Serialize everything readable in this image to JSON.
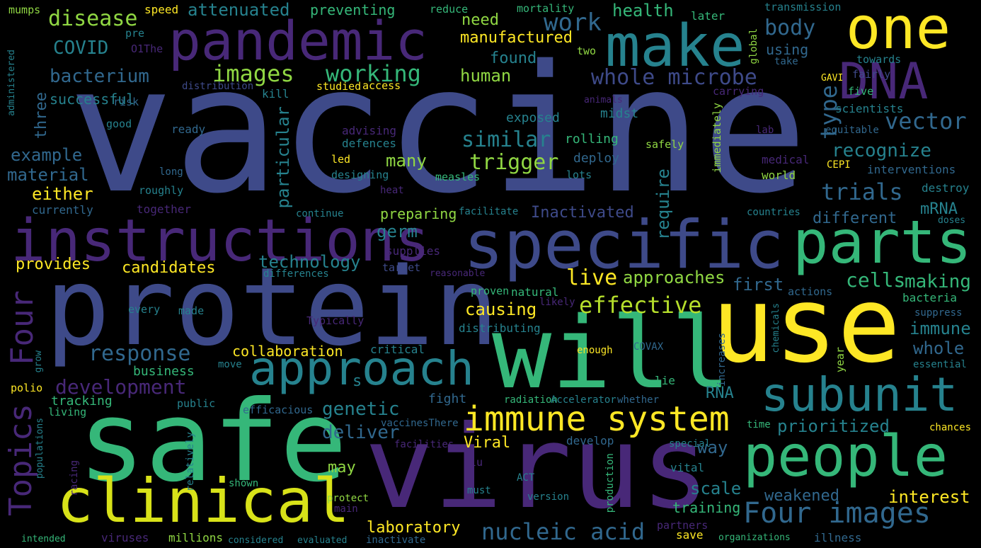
{
  "palette": {
    "background": "#000000",
    "dark_purple": "#482878",
    "indigo": "#3e4a89",
    "blue": "#31688e",
    "teal": "#26828e",
    "green": "#35b779",
    "lime": "#90d743",
    "yellow": "#fde725"
  },
  "words": {
    "vaccine": "vaccine",
    "protein": "protein",
    "safe": "safe",
    "virus": "virus",
    "use": "use",
    "will": "will",
    "specific": "specific",
    "instructions": "instructions",
    "pandemic": "pandemic",
    "make": "make",
    "one": "one",
    "dna": "DNA",
    "parts": "parts",
    "people": "people",
    "clinical": "clinical",
    "approach": "approach",
    "subunit": "subunit",
    "immune_system": "immune system",
    "topics": "Topics",
    "four": "Four",
    "four_images": "Four images",
    "nucleic_acid": "nucleic acid",
    "whole_microbe": "whole microbe",
    "images": "images",
    "working": "working",
    "bacterium": "bacterium",
    "covid": "COVID",
    "disease": "disease",
    "attenuated": "attenuated",
    "successful": "successful",
    "three": "three",
    "work": "work",
    "body": "body",
    "health": "health",
    "type": "type",
    "vector": "vector",
    "recognize": "recognize",
    "trials": "trials",
    "mrna": "mRNA",
    "different": "different",
    "response": "response",
    "development": "development",
    "genetic": "genetic",
    "deliver": "deliver",
    "effective": "effective",
    "causing": "causing",
    "live": "live",
    "approaches": "approaches",
    "cells": "cells",
    "making": "making",
    "first": "first",
    "immune": "immune",
    "whole": "whole",
    "trigger": "trigger",
    "similar": "similar",
    "many": "many",
    "germ": "germ",
    "particular": "particular",
    "require": "require",
    "technology": "technology",
    "candidates": "candidates",
    "provides": "provides",
    "either": "either",
    "example": "example",
    "material": "material",
    "human": "human",
    "found": "found",
    "manufactured": "manufactured",
    "need": "need",
    "preventing": "preventing",
    "inactivated": "Inactivated",
    "preparing": "preparing",
    "laboratory": "laboratory",
    "may": "may",
    "way": "way",
    "scale": "scale",
    "training": "training",
    "weakened": "weakened",
    "interest": "interest",
    "prioritized": "prioritized",
    "rna": "RNA",
    "viral": "Viral",
    "collaboration": "collaboration",
    "business": "business",
    "tracking": "tracking",
    "mumps": "mumps",
    "speed": "speed",
    "reduce": "reduce",
    "mortality": "mortality",
    "later": "later",
    "transmission": "transmission",
    "pre": "pre",
    "o1the": "O1The",
    "two": "two",
    "take": "take",
    "towards": "towards",
    "fairly": "fairly",
    "gavi": "GAVI",
    "five": "five",
    "scientists": "scientists",
    "equitable": "equitable",
    "lab": "lab",
    "carrying": "carrying",
    "global": "global",
    "using": "using",
    "distribution": "distribution",
    "kill": "kill",
    "studied": "studied",
    "access": "access",
    "risk": "risk",
    "good": "good",
    "ready": "ready",
    "administered": "administered",
    "exposed": "exposed",
    "midst": "midst",
    "animals": "animals",
    "advising": "advising",
    "defences": "defences",
    "led": "led",
    "designing": "designing",
    "measles": "measles",
    "rolling": "rolling",
    "deploy": "deploy",
    "lots": "lots",
    "safely": "safely",
    "immediately": "immediately",
    "medical": "medical",
    "world": "world",
    "cepi": "CEPI",
    "interventions": "interventions",
    "destroy": "destroy",
    "long": "long",
    "roughly": "roughly",
    "heat": "heat",
    "currently": "currently",
    "together": "together",
    "continue": "continue",
    "facilitate": "facilitate",
    "countries": "countries",
    "doses": "doses",
    "supplies": "supplies",
    "target": "target",
    "reasonable": "reasonable",
    "differences": "differences",
    "proven": "proven",
    "natural": "natural",
    "likely": "likely",
    "actions": "actions",
    "bacteria": "bacteria",
    "suppress": "suppress",
    "every": "every",
    "made": "made",
    "typically": "Typically",
    "distributing": "distributing",
    "critical": "critical",
    "enough": "enough",
    "covax": "COVAX",
    "year": "year",
    "chemicals": "chemicals",
    "increases": "increases",
    "essential": "essential",
    "grow": "grow",
    "move": "move",
    "lie": "lie",
    "polio": "polio",
    "public": "public",
    "living": "living",
    "efficacious": "efficacious",
    "radiation": "radiation",
    "accelerator": "Accelerator",
    "whether": "whether",
    "fight": "fight",
    "vaccines_there": "vaccinesThere",
    "facilities": "facilities",
    "develop": "develop",
    "special": "special",
    "time": "time",
    "chances": "chances",
    "populations": "populations",
    "racing": "racing",
    "relatively": "relatively",
    "flu": "flu",
    "vital": "vital",
    "shown": "shown",
    "must": "must",
    "act": "ACT",
    "version": "version",
    "production": "production",
    "protect": "protect",
    "main": "main",
    "partners": "partners",
    "intended": "intended",
    "viruses": "viruses",
    "millions": "millions",
    "considered": "considered",
    "evaluated": "evaluated",
    "inactivate": "inactivate",
    "save": "save",
    "organizations": "organizations",
    "illness": "illness",
    "s": "s"
  }
}
